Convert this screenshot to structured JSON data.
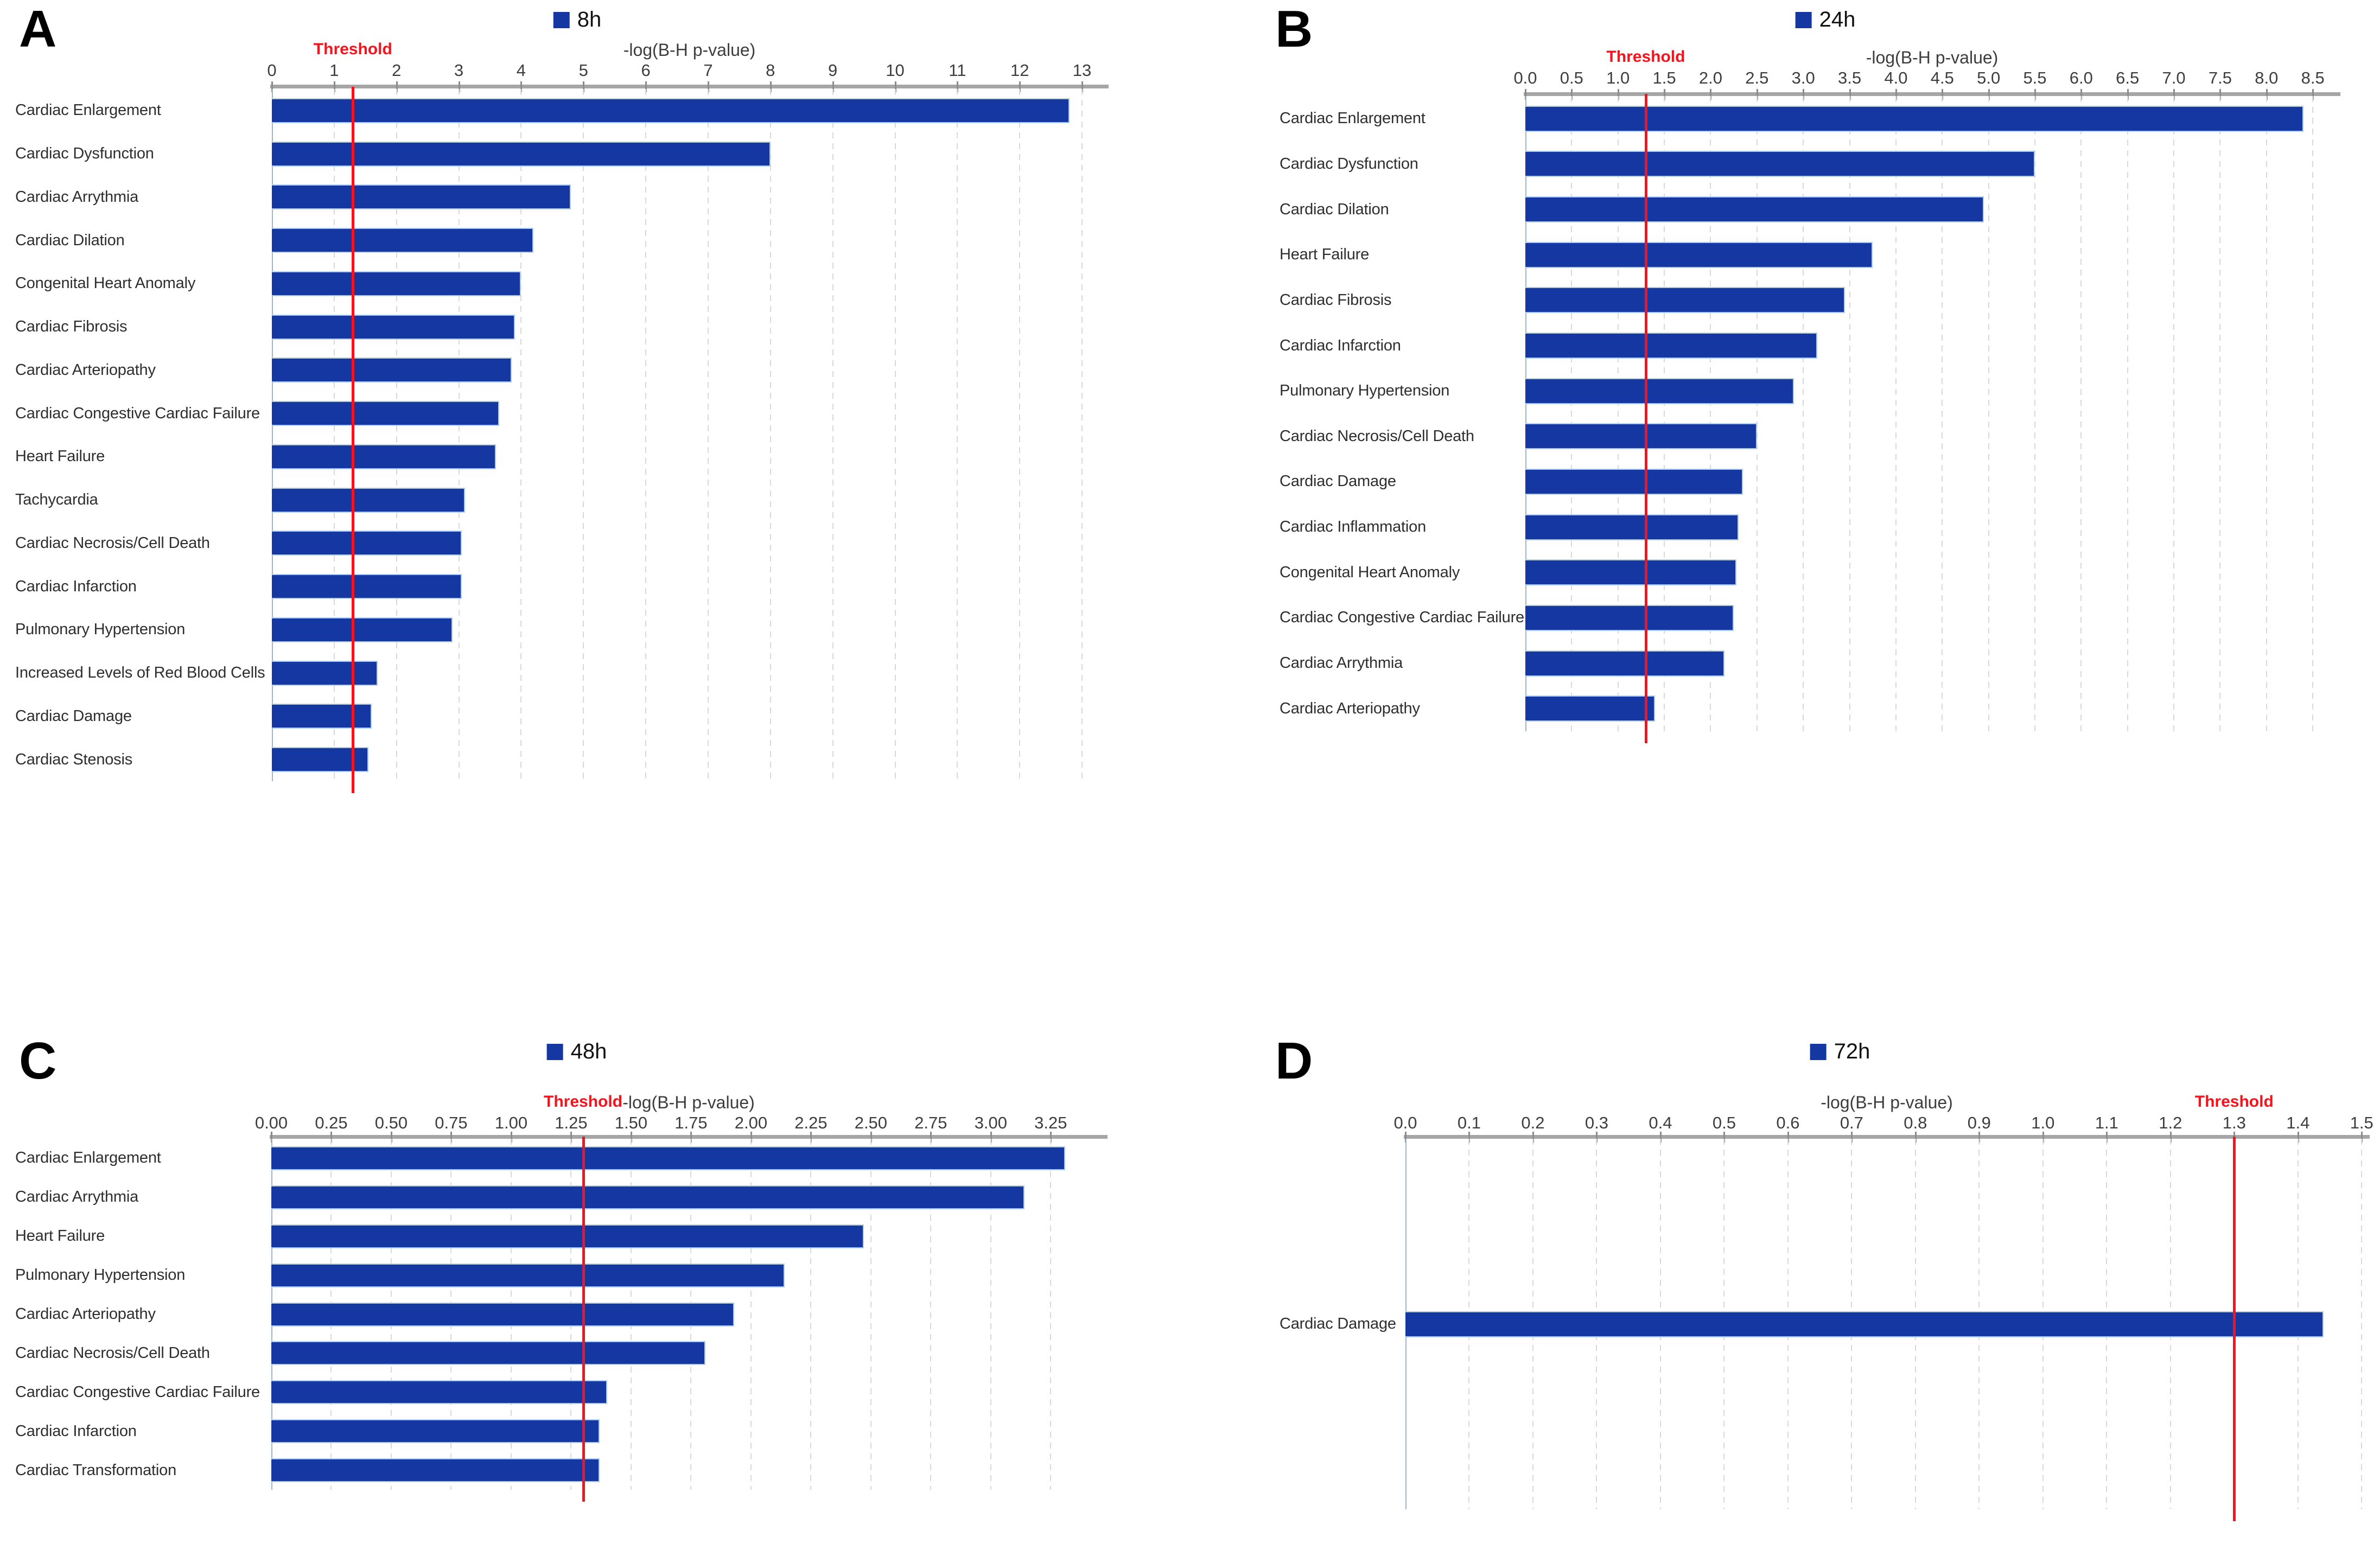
{
  "figure_colors": {
    "bar_fill": "#1537A1",
    "bar_edge": "#AECBEC",
    "threshold_red": "#F8131C",
    "axis_line_gray": "#A6A6A6",
    "tick_mark_gray": "#8C8C8C",
    "gridline_gray": "#D9D9D9",
    "plot_left_edge": "#9FB6CC",
    "label_text": "#2E2E2E"
  },
  "chart_data": [
    {
      "type": "bar",
      "orientation": "horizontal",
      "panel_label": "A",
      "title": "8h",
      "xlabel": "-log(B-H p-value)",
      "threshold_label": "Threshold",
      "threshold": 1.3,
      "xlim": [
        0,
        13.4
      ],
      "xticks": [
        "0",
        "1",
        "2",
        "3",
        "4",
        "5",
        "6",
        "7",
        "8",
        "9",
        "10",
        "11",
        "12",
        "13"
      ],
      "grid": "vertical-dashed",
      "legend_position": "top-center",
      "categories": [
        "Cardiac Enlargement",
        "Cardiac Dysfunction",
        "Cardiac Arrythmia",
        "Cardiac Dilation",
        "Congenital Heart Anomaly",
        "Cardiac Fibrosis",
        "Cardiac Arteriopathy",
        "Cardiac Congestive Cardiac Failure",
        "Heart Failure",
        "Tachycardia",
        "Cardiac Necrosis/Cell Death",
        "Cardiac Infarction",
        "Pulmonary Hypertension",
        "Increased Levels of Red Blood Cells",
        "Cardiac Damage",
        "Cardiac Stenosis"
      ],
      "values": [
        12.8,
        8.0,
        4.8,
        4.2,
        4.0,
        3.9,
        3.85,
        3.65,
        3.6,
        3.1,
        3.05,
        3.05,
        2.9,
        1.7,
        1.6,
        1.55
      ]
    },
    {
      "type": "bar",
      "orientation": "horizontal",
      "panel_label": "B",
      "title": "24h",
      "xlabel": "-log(B-H p-value)",
      "threshold_label": "Threshold",
      "threshold": 1.3,
      "xlim": [
        0,
        8.78
      ],
      "xticks": [
        "0.0",
        "0.5",
        "1.0",
        "1.5",
        "2.0",
        "2.5",
        "3.0",
        "3.5",
        "4.0",
        "4.5",
        "5.0",
        "5.5",
        "6.0",
        "6.5",
        "7.0",
        "7.5",
        "8.0",
        "8.5"
      ],
      "grid": "vertical-dashed",
      "legend_position": "top-center",
      "categories": [
        "Cardiac Enlargement",
        "Cardiac Dysfunction",
        "Cardiac Dilation",
        "Heart Failure",
        "Cardiac Fibrosis",
        "Cardiac Infarction",
        "Pulmonary Hypertension",
        "Cardiac Necrosis/Cell Death",
        "Cardiac Damage",
        "Cardiac Inflammation",
        "Congenital Heart Anomaly",
        "Cardiac Congestive Cardiac Failure",
        "Cardiac Arrythmia",
        "Cardiac Arteriopathy"
      ],
      "values": [
        8.4,
        5.5,
        4.95,
        3.75,
        3.45,
        3.15,
        2.9,
        2.5,
        2.35,
        2.3,
        2.28,
        2.25,
        2.15,
        1.4
      ]
    },
    {
      "type": "bar",
      "orientation": "horizontal",
      "panel_label": "C",
      "title": "48h",
      "xlabel": "-log(B-H p-value)",
      "threshold_label": "Threshold",
      "threshold": 1.3,
      "xlim": [
        0,
        3.48
      ],
      "xticks": [
        "0.00",
        "0.25",
        "0.50",
        "0.75",
        "1.00",
        "1.25",
        "1.50",
        "1.75",
        "2.00",
        "2.25",
        "2.50",
        "2.75",
        "3.00",
        "3.25"
      ],
      "grid": "vertical-dashed",
      "legend_position": "top-center",
      "categories": [
        "Cardiac Enlargement",
        "Cardiac Arrythmia",
        "Heart Failure",
        "Pulmonary Hypertension",
        "Cardiac Arteriopathy",
        "Cardiac Necrosis/Cell Death",
        "Cardiac Congestive Cardiac Failure",
        "Cardiac Infarction",
        "Cardiac Transformation"
      ],
      "values": [
        3.31,
        3.14,
        2.47,
        2.14,
        1.93,
        1.81,
        1.4,
        1.37,
        1.37
      ]
    },
    {
      "type": "bar",
      "orientation": "horizontal",
      "panel_label": "D",
      "title": "72h",
      "xlabel": "-log(B-H p-value)",
      "threshold_label": "Threshold",
      "threshold": 1.3,
      "xlim": [
        0,
        1.51
      ],
      "xticks": [
        "0.0",
        "0.1",
        "0.2",
        "0.3",
        "0.4",
        "0.5",
        "0.6",
        "0.7",
        "0.8",
        "0.9",
        "1.0",
        "1.1",
        "1.2",
        "1.3",
        "1.4",
        "1.5"
      ],
      "grid": "vertical-dashed",
      "legend_position": "top-center",
      "categories": [
        "Cardiac Damage"
      ],
      "values": [
        1.44
      ]
    }
  ]
}
